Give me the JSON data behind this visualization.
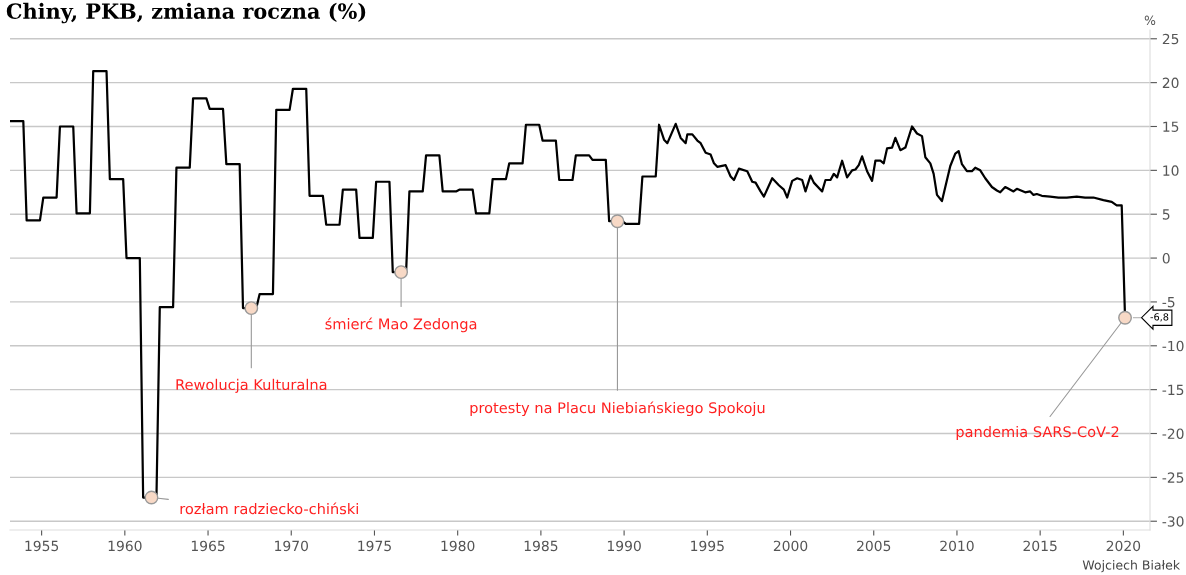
{
  "chart_data": {
    "type": "line",
    "title": "Chiny, PKB, zmiana roczna (%)",
    "ylabel": "%",
    "series": [
      {
        "color": "#000000",
        "x": [
          1953.1,
          1953.9,
          1954.1,
          1954.9,
          1955.1,
          1955.9,
          1956.1,
          1956.9,
          1957.1,
          1957.9,
          1958.1,
          1958.9,
          1959.1,
          1959.9,
          1960.1,
          1960.9,
          1961.1,
          1961.9,
          1962.1,
          1962.9,
          1963.1,
          1963.9,
          1964.1,
          1964.9,
          1965.1,
          1965.9,
          1966.1,
          1966.9,
          1967.1,
          1967.9,
          1968.1,
          1968.9,
          1969.1,
          1969.9,
          1970.1,
          1970.9,
          1971.1,
          1971.9,
          1972.1,
          1972.9,
          1973.1,
          1973.9,
          1974.1,
          1974.9,
          1975.1,
          1975.9,
          1976.1,
          1976.9,
          1977.1,
          1977.9,
          1978.1,
          1978.9,
          1979.1,
          1979.9,
          1980.1,
          1980.9,
          1981.1,
          1981.9,
          1982.1,
          1982.9,
          1983.1,
          1983.9,
          1984.1,
          1984.9,
          1985.1,
          1985.9,
          1986.1,
          1986.9,
          1987.1,
          1987.9,
          1988.1,
          1988.9,
          1989.1,
          1989.9,
          1990.1,
          1990.9,
          1991.1,
          1991.9,
          1992.1,
          1992.4,
          1992.6,
          1993.1,
          1993.4,
          1993.7,
          1993.8,
          1994.1,
          1994.4,
          1994.6,
          1994.9,
          1995.2,
          1995.4,
          1995.6,
          1996.1,
          1996.4,
          1996.6,
          1996.9,
          1997.4,
          1997.7,
          1997.9,
          1998.2,
          1998.4,
          1998.9,
          1999.3,
          1999.6,
          1999.8,
          2000.1,
          2000.4,
          2000.7,
          2000.9,
          2001.2,
          2001.4,
          2001.9,
          2002.1,
          2002.4,
          2002.6,
          2002.8,
          2003.1,
          2003.4,
          2003.7,
          2003.9,
          2004.1,
          2004.3,
          2004.6,
          2004.9,
          2005.1,
          2005.4,
          2005.6,
          2005.8,
          2006.1,
          2006.3,
          2006.6,
          2006.9,
          2007.3,
          2007.6,
          2007.9,
          2008.1,
          2008.4,
          2008.6,
          2008.8,
          2009.1,
          2009.3,
          2009.6,
          2009.9,
          2010.1,
          2010.3,
          2010.6,
          2010.9,
          2011.1,
          2011.4,
          2011.7,
          2012.1,
          2012.4,
          2012.6,
          2012.9,
          2013.1,
          2013.4,
          2013.6,
          2014.1,
          2014.4,
          2014.6,
          2014.8,
          2015.1,
          2015.6,
          2016.1,
          2016.6,
          2017.2,
          2017.7,
          2018.2,
          2018.8,
          2019.3,
          2019.6,
          2019.9,
          2020.1
        ],
        "values": [
          15.6,
          15.6,
          4.3,
          4.3,
          6.9,
          6.9,
          15.0,
          15.0,
          5.1,
          5.1,
          21.3,
          21.3,
          9.0,
          9.0,
          0.0,
          0.0,
          -27.3,
          -27.3,
          -5.6,
          -5.6,
          10.3,
          10.3,
          18.2,
          18.2,
          17.0,
          17.0,
          10.7,
          10.7,
          -5.7,
          -5.7,
          -4.1,
          -4.1,
          16.9,
          16.9,
          19.3,
          19.3,
          7.1,
          7.1,
          3.8,
          3.8,
          7.8,
          7.8,
          2.3,
          2.3,
          8.7,
          8.7,
          -1.6,
          -1.6,
          7.6,
          7.6,
          11.7,
          11.7,
          7.6,
          7.6,
          7.8,
          7.8,
          5.1,
          5.1,
          9.0,
          9.0,
          10.8,
          10.8,
          15.2,
          15.2,
          13.4,
          13.4,
          8.9,
          8.9,
          11.7,
          11.7,
          11.2,
          11.2,
          4.2,
          4.2,
          3.9,
          3.9,
          9.3,
          9.3,
          15.2,
          13.5,
          13.1,
          15.3,
          13.7,
          13.1,
          14.1,
          14.1,
          13.4,
          13.1,
          12.0,
          11.8,
          10.8,
          10.4,
          10.6,
          9.3,
          8.9,
          10.2,
          9.9,
          8.7,
          8.6,
          7.6,
          7.0,
          9.1,
          8.3,
          7.8,
          6.9,
          8.8,
          9.1,
          8.9,
          7.6,
          9.4,
          8.6,
          7.6,
          8.9,
          8.9,
          9.6,
          9.2,
          11.1,
          9.2,
          10.0,
          10.1,
          10.6,
          11.6,
          9.9,
          8.8,
          11.1,
          11.1,
          10.8,
          12.5,
          12.6,
          13.7,
          12.3,
          12.6,
          15.0,
          14.2,
          13.9,
          11.5,
          10.8,
          9.6,
          7.2,
          6.5,
          8.1,
          10.5,
          11.9,
          12.2,
          10.7,
          9.9,
          9.9,
          10.3,
          10.0,
          9.1,
          8.1,
          7.7,
          7.5,
          8.1,
          7.9,
          7.6,
          7.9,
          7.5,
          7.6,
          7.2,
          7.3,
          7.1,
          7.0,
          6.9,
          6.9,
          7.0,
          6.9,
          6.9,
          6.6,
          6.4,
          6.0,
          6.0,
          -6.8
        ]
      }
    ],
    "xlim": [
      1953.1,
      2021.6
    ],
    "xticks": [
      1955,
      1960,
      1965,
      1970,
      1975,
      1980,
      1985,
      1990,
      1995,
      2000,
      2005,
      2010,
      2015,
      2020
    ],
    "ylim": [
      -31,
      26
    ],
    "yticks": [
      25,
      20,
      15,
      10,
      5,
      0,
      -5,
      -10,
      -15,
      -20,
      -25,
      -30
    ],
    "grid": "y",
    "line_style": "solid",
    "marker": "none",
    "annotations": [
      {
        "text": "rozłam radziecko-chiński",
        "x": 1961.6,
        "y": -27.3
      },
      {
        "text": "Rewolucja Kulturalna",
        "x": 1967.6,
        "y": -5.7
      },
      {
        "text": "śmierć Mao Zedonga",
        "x": 1976.6,
        "y": -1.6
      },
      {
        "text": "protesty na Placu Niebiańskiego Spokoju",
        "x": 1989.6,
        "y": 4.2
      },
      {
        "text": "pandemia SARS-CoV-2",
        "x": 2020.1,
        "y": -6.8
      },
      {
        "text": "-6,8",
        "x": 2020.1,
        "y": -6.8
      },
      "Wojciech Białek"
    ]
  }
}
